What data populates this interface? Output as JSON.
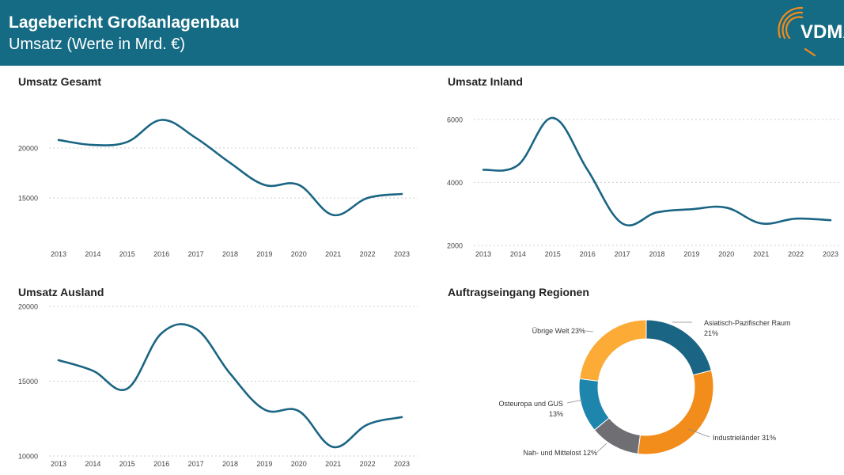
{
  "header": {
    "title": "Lagebericht Großanlagenbau",
    "subtitle": "Umsatz (Werte in Mrd. €)",
    "logo_text": "VDMA",
    "background": "#156b84"
  },
  "chart_data": [
    {
      "type": "line",
      "title": "Umsatz Gesamt",
      "x": [
        "2013",
        "2014",
        "2015",
        "2016",
        "2017",
        "2018",
        "2019",
        "2020",
        "2021",
        "2022",
        "2023"
      ],
      "series": [
        {
          "values": [
            20800,
            20300,
            20600,
            22800,
            21000,
            18500,
            16300,
            16300,
            13300,
            15000,
            15400
          ]
        }
      ],
      "yticks": [
        15000,
        20000
      ],
      "ylim": [
        12000,
        24500
      ],
      "grid": true,
      "color": "#1a6583"
    },
    {
      "type": "line",
      "title": "Umsatz Inland",
      "x": [
        "2013",
        "2014",
        "2015",
        "2016",
        "2017",
        "2018",
        "2019",
        "2020",
        "2021",
        "2022",
        "2023"
      ],
      "series": [
        {
          "values": [
            4400,
            4550,
            6050,
            4400,
            2700,
            3050,
            3150,
            3200,
            2700,
            2850,
            2800
          ]
        }
      ],
      "yticks": [
        2000,
        4000,
        6000
      ],
      "ylim": [
        2000,
        6600
      ],
      "grid": true,
      "color": "#1a6583"
    },
    {
      "type": "line",
      "title": "Umsatz Ausland",
      "x": [
        "2013",
        "2014",
        "2015",
        "2016",
        "2017",
        "2018",
        "2019",
        "2020",
        "2021",
        "2022",
        "2023"
      ],
      "series": [
        {
          "values": [
            16400,
            15700,
            14500,
            18200,
            18500,
            15500,
            13100,
            13000,
            10600,
            12100,
            12600
          ]
        }
      ],
      "yticks": [
        10000,
        15000,
        20000
      ],
      "ylim": [
        10000,
        20000
      ],
      "grid": true,
      "color": "#1a6583"
    },
    {
      "type": "pie",
      "title": "Auftragseingang Regionen",
      "donut": true,
      "slices": [
        {
          "label": "Asiatisch-Pazifischer Raum",
          "pct_label": "21%",
          "value": 21,
          "color": "#1a6583"
        },
        {
          "label": "Industrieländer 31%",
          "value": 31,
          "color": "#f28c1a"
        },
        {
          "label": "Nah- und Mittelost 12%",
          "value": 12,
          "color": "#6e6e73"
        },
        {
          "label": "Osteuropa und GUS",
          "pct_label": "13%",
          "value": 13,
          "color": "#1e85ad"
        },
        {
          "label": "Übrige Welt 23%",
          "value": 23,
          "color": "#fbab36"
        }
      ]
    }
  ]
}
